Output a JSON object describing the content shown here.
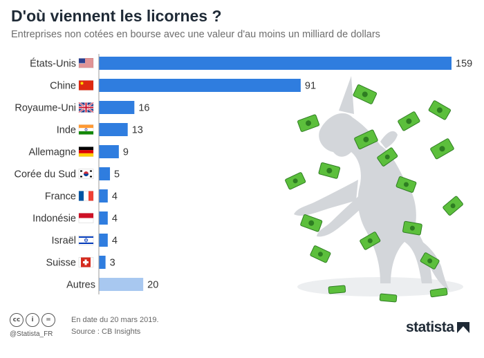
{
  "title": "D'où viennent les licornes ?",
  "subtitle": "Entreprises non cotées en bourse avec une valeur d'au moins un milliard de dollars",
  "colors": {
    "bar": "#2f7ddf",
    "bar_other": "#a8c8f0",
    "label": "#333333",
    "axis": "#999999",
    "money": "#5cbf3c",
    "money_dark": "#2e7d22",
    "unicorn": "#d3d6da"
  },
  "chart_data": {
    "type": "bar",
    "orientation": "horizontal",
    "categories": [
      "États-Unis",
      "Chine",
      "Royaume-Uni",
      "Inde",
      "Allemagne",
      "Corée du Sud",
      "France",
      "Indonésie",
      "Israël",
      "Suisse",
      "Autres"
    ],
    "flag_icons": [
      "us-flag-icon",
      "china-flag-icon",
      "uk-flag-icon",
      "india-flag-icon",
      "germany-flag-icon",
      "south-korea-flag-icon",
      "france-flag-icon",
      "indonesia-flag-icon",
      "israel-flag-icon",
      "switzerland-flag-icon",
      ""
    ],
    "values": [
      159,
      91,
      16,
      13,
      9,
      5,
      4,
      4,
      4,
      3,
      20
    ],
    "xlim": [
      0,
      159
    ],
    "grid": false,
    "legend": "none"
  },
  "footer": {
    "license_icons": [
      "cc-icon",
      "by-icon",
      "nd-icon"
    ],
    "license_text": [
      "cc",
      "i",
      "="
    ],
    "handle": "@Statista_FR",
    "date_note": "En date du 20 mars 2019.",
    "source": "Source : CB Insights",
    "brand": "statista"
  }
}
